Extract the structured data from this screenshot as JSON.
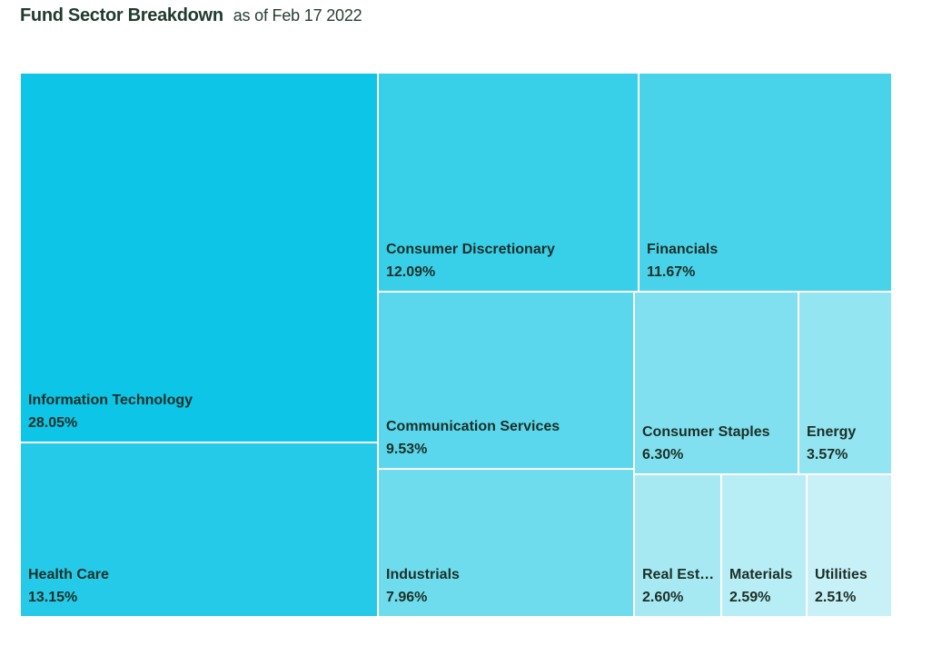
{
  "header": {
    "title": "Fund Sector Breakdown",
    "subtitle": "as of Feb 17 2022"
  },
  "chart_data": {
    "type": "treemap",
    "title": "Fund Sector Breakdown",
    "subtitle": "as of Feb 17 2022",
    "unit": "%",
    "data": [
      {
        "name": "Information Technology",
        "value": 28.05,
        "label": "28.05%",
        "color": "#0dc5e6"
      },
      {
        "name": "Health Care",
        "value": 13.15,
        "label": "13.15%",
        "color": "#24cae8"
      },
      {
        "name": "Consumer Discretionary",
        "value": 12.09,
        "label": "12.09%",
        "color": "#38cfe9"
      },
      {
        "name": "Financials",
        "value": 11.67,
        "label": "11.67%",
        "color": "#49d3ea"
      },
      {
        "name": "Communication Services",
        "value": 9.53,
        "label": "9.53%",
        "color": "#5ad7ec"
      },
      {
        "name": "Industrials",
        "value": 7.96,
        "label": "7.96%",
        "color": "#6edced"
      },
      {
        "name": "Consumer Staples",
        "value": 6.3,
        "label": "6.30%",
        "color": "#80e0ef"
      },
      {
        "name": "Energy",
        "value": 3.57,
        "label": "3.57%",
        "color": "#93e5f1"
      },
      {
        "name": "Real Estate",
        "value": 2.6,
        "label": "2.60%",
        "color": "#a6e9f3"
      },
      {
        "name": "Materials",
        "value": 2.59,
        "label": "2.59%",
        "color": "#b7edf5"
      },
      {
        "name": "Utilities",
        "value": 2.51,
        "label": "2.51%",
        "color": "#c8f1f7"
      }
    ]
  }
}
